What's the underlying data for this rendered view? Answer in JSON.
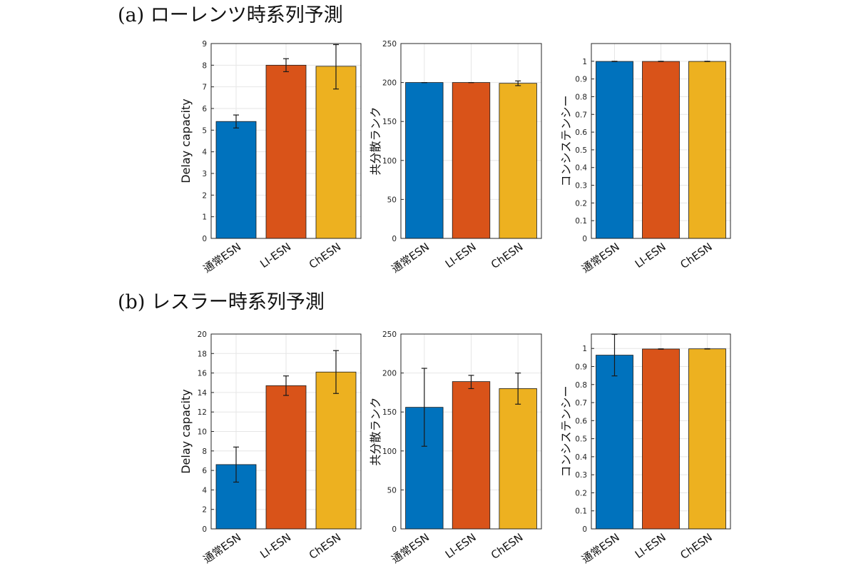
{
  "sections": [
    {
      "title": "(a) ローレンツ時系列予測"
    },
    {
      "title": "(b) レスラー時系列予測"
    }
  ],
  "colors": {
    "通常ESN": "#0072BD",
    "LI-ESN": "#D95319",
    "ChESN": "#EDB120"
  },
  "chart_data": [
    {
      "type": "bar",
      "section": "(a) ローレンツ時系列予測",
      "categories": [
        "通常ESN",
        "LI-ESN",
        "ChESN"
      ],
      "values": [
        5.4,
        8.0,
        7.95
      ],
      "error_low": [
        5.1,
        7.7,
        6.9
      ],
      "error_high": [
        5.7,
        8.3,
        8.95
      ],
      "ylabel": "Delay capacity",
      "ylim": [
        0,
        9
      ],
      "yticks": [
        0,
        1,
        2,
        3,
        4,
        5,
        6,
        7,
        8,
        9
      ],
      "grid": true
    },
    {
      "type": "bar",
      "section": "(a) ローレンツ時系列予測",
      "categories": [
        "通常ESN",
        "LI-ESN",
        "ChESN"
      ],
      "values": [
        200,
        200,
        199
      ],
      "error_low": [
        200,
        200,
        196
      ],
      "error_high": [
        200,
        200,
        202
      ],
      "ylabel": "共分散ランク",
      "ylim": [
        0,
        250
      ],
      "yticks": [
        0,
        50,
        100,
        150,
        200,
        250
      ],
      "grid": true
    },
    {
      "type": "bar",
      "section": "(a) ローレンツ時系列予測",
      "categories": [
        "通常ESN",
        "LI-ESN",
        "ChESN"
      ],
      "values": [
        0.999,
        0.999,
        0.999
      ],
      "error_low": [
        0.998,
        0.998,
        0.998
      ],
      "error_high": [
        1.0,
        1.0,
        1.0
      ],
      "ylabel": "コンシステンシー",
      "ylim": [
        0,
        1.1
      ],
      "yticks": [
        0,
        0.1,
        0.2,
        0.3,
        0.4,
        0.5,
        0.6,
        0.7,
        0.8,
        0.9,
        1
      ],
      "grid": true
    },
    {
      "type": "bar",
      "section": "(b) レスラー時系列予測",
      "categories": [
        "通常ESN",
        "LI-ESN",
        "ChESN"
      ],
      "values": [
        6.6,
        14.7,
        16.1
      ],
      "error_low": [
        4.8,
        13.7,
        13.9
      ],
      "error_high": [
        8.4,
        15.7,
        18.3
      ],
      "ylabel": "Delay capacity",
      "ylim": [
        0,
        20
      ],
      "yticks": [
        0,
        2,
        4,
        6,
        8,
        10,
        12,
        14,
        16,
        18,
        20
      ],
      "grid": true
    },
    {
      "type": "bar",
      "section": "(b) レスラー時系列予測",
      "categories": [
        "通常ESN",
        "LI-ESN",
        "ChESN"
      ],
      "values": [
        156,
        189,
        180
      ],
      "error_low": [
        106,
        180,
        160
      ],
      "error_high": [
        206,
        197,
        200
      ],
      "ylabel": "共分散ランク",
      "ylim": [
        0,
        250
      ],
      "yticks": [
        0,
        50,
        100,
        150,
        200,
        250
      ],
      "grid": true
    },
    {
      "type": "bar",
      "section": "(b) レスラー時系列予測",
      "categories": [
        "通常ESN",
        "LI-ESN",
        "ChESN"
      ],
      "values": [
        0.963,
        0.997,
        0.998
      ],
      "error_low": [
        0.848,
        0.996,
        0.997
      ],
      "error_high": [
        1.078,
        0.998,
        0.999
      ],
      "ylabel": "コンシステンシー",
      "ylim": [
        0,
        1.08
      ],
      "yticks": [
        0,
        0.1,
        0.2,
        0.3,
        0.4,
        0.5,
        0.6,
        0.7,
        0.8,
        0.9,
        1
      ],
      "grid": true
    }
  ]
}
